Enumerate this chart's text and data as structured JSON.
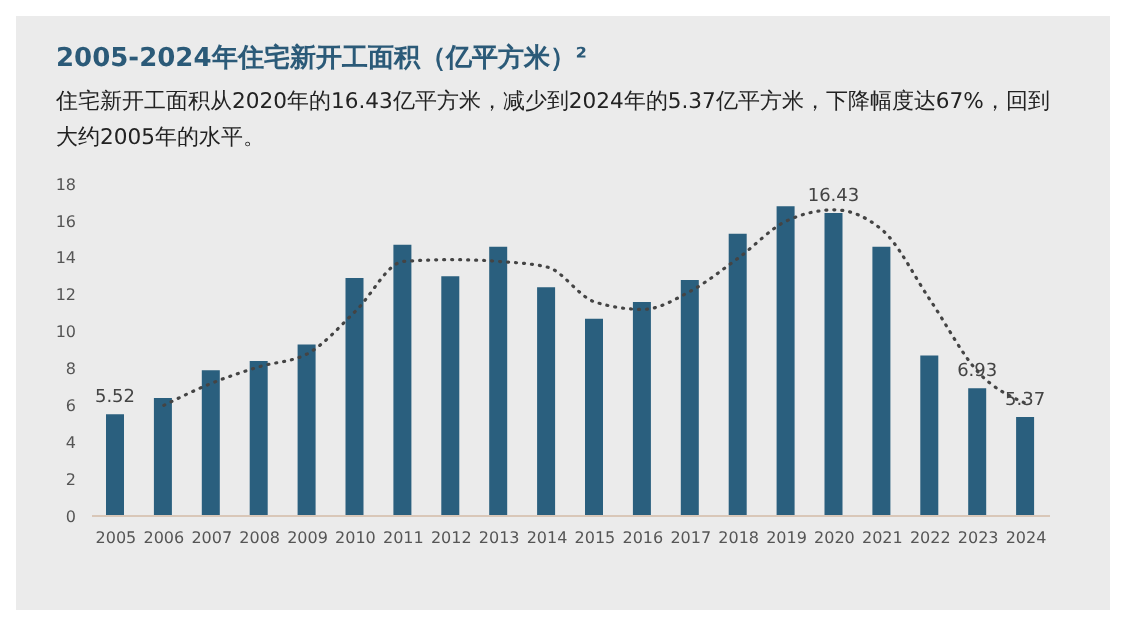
{
  "chart_data": {
    "type": "bar",
    "title": "2005-2024年住宅新开工面积（亿平方米）²",
    "subtitle": "住宅新开工面积从2020年的16.43亿平方米，减少到2024年的5.37亿平方米，下降幅度达67%，回到大约2005年的水平。",
    "categories": [
      "2005",
      "2006",
      "2007",
      "2008",
      "2009",
      "2010",
      "2011",
      "2012",
      "2013",
      "2014",
      "2015",
      "2016",
      "2017",
      "2018",
      "2019",
      "2020",
      "2021",
      "2022",
      "2023",
      "2024"
    ],
    "series": [
      {
        "color": "#2a5f7e",
        "values": [
          5.52,
          6.4,
          7.9,
          8.4,
          9.3,
          12.9,
          14.7,
          13.0,
          14.6,
          12.4,
          10.7,
          11.6,
          12.8,
          15.3,
          16.8,
          16.43,
          14.6,
          8.7,
          6.93,
          5.37
        ],
        "value_labels": [
          "5.52",
          null,
          null,
          null,
          null,
          null,
          null,
          null,
          null,
          null,
          null,
          null,
          null,
          null,
          null,
          "16.43",
          null,
          null,
          "6.93",
          "5.37"
        ]
      },
      {
        "type": "line",
        "color": "#444444",
        "line_style": "dotted",
        "marker": "none",
        "values": [
          null,
          6.0,
          7.2,
          8.1,
          8.8,
          11.1,
          13.8,
          13.9,
          13.8,
          13.5,
          11.6,
          11.2,
          12.2,
          14.0,
          16.0,
          16.6,
          15.5,
          11.7,
          7.8,
          6.1
        ]
      }
    ],
    "ylim": [
      0,
      18
    ],
    "yticks": [
      0,
      2,
      4,
      6,
      8,
      10,
      12,
      14,
      16,
      18
    ],
    "grid": false,
    "legend": false
  }
}
